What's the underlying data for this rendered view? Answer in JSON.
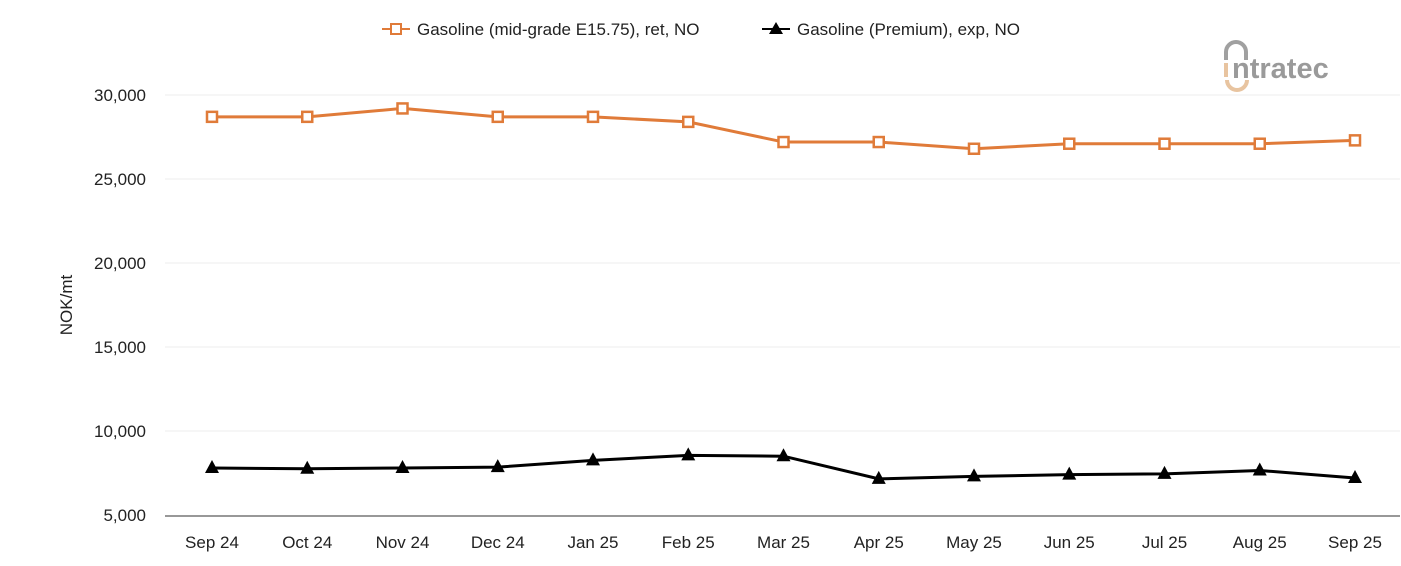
{
  "chart_data": {
    "type": "line",
    "title": "",
    "xlabel": "",
    "ylabel": "NOK/mt",
    "ylim": [
      5000,
      30000
    ],
    "yticks": [
      5000,
      10000,
      15000,
      20000,
      25000,
      30000
    ],
    "ytick_labels": [
      "5,000",
      "10,000",
      "15,000",
      "20,000",
      "25,000",
      "30,000"
    ],
    "grid": true,
    "legend_position": "top",
    "categories": [
      "Sep 24",
      "Oct 24",
      "Nov 24",
      "Dec 24",
      "Jan 25",
      "Feb 25",
      "Mar 25",
      "Apr 25",
      "May 25",
      "Jun 25",
      "Jul 25",
      "Aug 25",
      "Sep 25"
    ],
    "series": [
      {
        "name": "Gasoline (mid-grade E15.75), ret, NO",
        "color": "#e07b39",
        "marker": "open-square",
        "values": [
          28700,
          28700,
          29200,
          28700,
          28700,
          28400,
          27200,
          27200,
          26800,
          27100,
          27100,
          27100,
          27300
        ]
      },
      {
        "name": "Gasoline (Premium), exp, NO",
        "color": "#000000",
        "marker": "filled-triangle",
        "values": [
          7800,
          7750,
          7800,
          7850,
          8250,
          8550,
          8500,
          7150,
          7300,
          7400,
          7450,
          7650,
          7200
        ]
      }
    ]
  },
  "logo": {
    "text": "intratec"
  }
}
